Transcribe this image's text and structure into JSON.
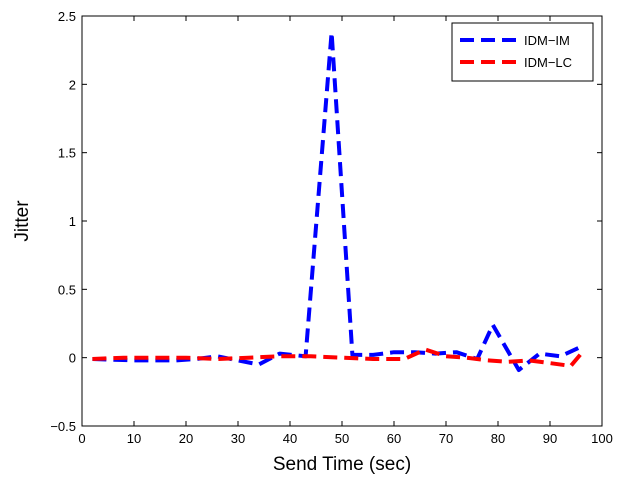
{
  "chart_data": {
    "type": "line",
    "xlabel": "Send Time (sec)",
    "ylabel": "Jitter",
    "xlim": [
      0,
      100
    ],
    "ylim": [
      -0.5,
      2.5
    ],
    "xticks": [
      0,
      10,
      20,
      30,
      40,
      50,
      60,
      70,
      80,
      90,
      100
    ],
    "yticks": [
      -0.5,
      0,
      0.5,
      1,
      1.5,
      2,
      2.5
    ],
    "xtick_labels": [
      "0",
      "10",
      "20",
      "30",
      "40",
      "50",
      "60",
      "70",
      "80",
      "90",
      "100"
    ],
    "ytick_labels": [
      "−0.5",
      "0",
      "0.5",
      "1",
      "1.5",
      "2",
      "2.5"
    ],
    "grid": false,
    "legend_position": "top-right",
    "series": [
      {
        "name": "IDM−IM",
        "color": "#0000ff",
        "style": "dashed",
        "x": [
          2,
          10,
          18,
          22,
          26,
          30,
          34,
          38,
          43,
          48,
          52,
          56,
          60,
          64,
          68,
          72,
          76,
          79,
          84,
          88,
          92,
          96
        ],
        "y": [
          -0.01,
          -0.02,
          -0.02,
          -0.01,
          0.01,
          -0.02,
          -0.05,
          0.03,
          0.01,
          2.38,
          0.02,
          0.02,
          0.04,
          0.04,
          0.03,
          0.04,
          -0.01,
          0.24,
          -0.09,
          0.03,
          0.01,
          0.08
        ]
      },
      {
        "name": "IDM−LC",
        "color": "#ff0000",
        "style": "dashed",
        "x": [
          2,
          8,
          14,
          20,
          26,
          32,
          38,
          44,
          50,
          56,
          62,
          66,
          70,
          74,
          78,
          82,
          86,
          90,
          94,
          96
        ],
        "y": [
          -0.01,
          0.0,
          0.0,
          0.0,
          -0.01,
          0.0,
          0.01,
          0.01,
          0.0,
          -0.01,
          -0.01,
          0.06,
          0.01,
          0.0,
          -0.02,
          -0.03,
          -0.02,
          -0.04,
          -0.06,
          0.03
        ]
      }
    ]
  }
}
